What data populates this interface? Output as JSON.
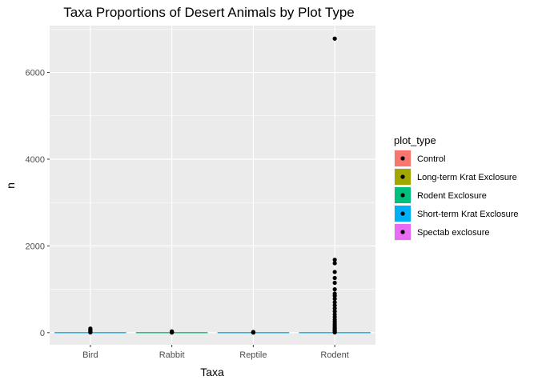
{
  "chart_data": {
    "type": "box",
    "title": "Taxa Proportions of Desert Animals by Plot Type",
    "xlabel": "Taxa",
    "ylabel": "n",
    "categories": [
      "Bird",
      "Rabbit",
      "Reptile",
      "Rodent"
    ],
    "y_ticks": [
      0,
      2000,
      4000,
      6000
    ],
    "y_tick_labels": [
      "0",
      "2000",
      "4000",
      "6000"
    ],
    "ylim": [
      -280,
      7080
    ],
    "grid": true,
    "legend": {
      "title": "plot_type",
      "placement": "right"
    },
    "series": [
      {
        "name": "Control",
        "color": "#F8766D"
      },
      {
        "name": "Long-term Krat Exclosure",
        "color": "#A3A500"
      },
      {
        "name": "Rodent Exclosure",
        "color": "#00BF7D"
      },
      {
        "name": "Short-term Krat Exclosure",
        "color": "#00B0F6"
      },
      {
        "name": "Spectab exclosure",
        "color": "#E76BF3"
      }
    ],
    "median_colors": [
      "#00B0F6",
      "#00BF7D",
      "#00B0F6",
      "#00B0F6"
    ],
    "outliers": [
      {
        "category": "Bird",
        "values": [
          95,
          75,
          55,
          35,
          20,
          10,
          5
        ]
      },
      {
        "category": "Rabbit",
        "values": [
          30,
          20,
          12,
          6,
          3
        ]
      },
      {
        "category": "Reptile",
        "values": [
          15,
          8,
          4,
          2
        ]
      },
      {
        "category": "Rodent",
        "values": [
          6780,
          1680,
          1600,
          1400,
          1260,
          1150,
          1000,
          900,
          850,
          780,
          700,
          630,
          560,
          490,
          420,
          360,
          300,
          250,
          200,
          160,
          120,
          90,
          60,
          40,
          20,
          5
        ]
      }
    ]
  }
}
